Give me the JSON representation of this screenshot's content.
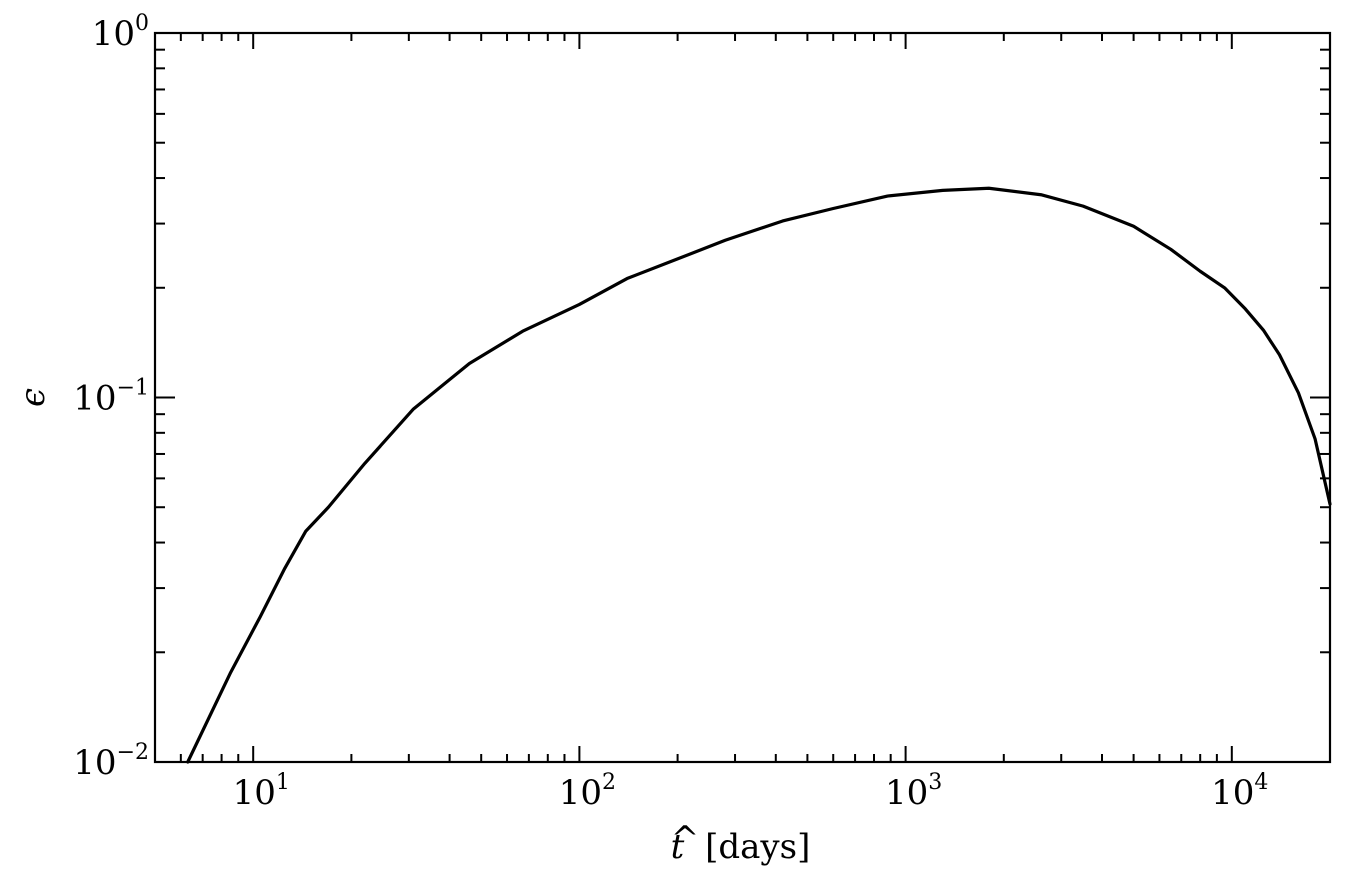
{
  "chart_data": {
    "type": "line",
    "x_scale": "log",
    "y_scale": "log",
    "xlim": [
      5,
      20000
    ],
    "ylim": [
      0.01,
      1
    ],
    "xlabel_symbol": "t",
    "xlabel_unit": "[days]",
    "ylabel": "ϵ",
    "grid": false,
    "x_ticks": [
      {
        "value": 10,
        "base": "10",
        "exp": "1"
      },
      {
        "value": 100,
        "base": "10",
        "exp": "2"
      },
      {
        "value": 1000,
        "base": "10",
        "exp": "3"
      },
      {
        "value": 10000,
        "base": "10",
        "exp": "4"
      }
    ],
    "y_ticks": [
      {
        "value": 0.01,
        "base": "10",
        "exp": "−2"
      },
      {
        "value": 0.1,
        "base": "10",
        "exp": "−1"
      },
      {
        "value": 1,
        "base": "10",
        "exp": "0"
      }
    ],
    "series": [
      {
        "color": "#000000",
        "x": [
          6.3,
          8.5,
          10.5,
          12.5,
          14.5,
          17,
          22,
          31,
          46,
          67,
          100,
          140,
          200,
          280,
          420,
          600,
          880,
          1300,
          1800,
          2600,
          3500,
          5000,
          6500,
          8000,
          9500,
          11000,
          12500,
          14000,
          16000,
          18000,
          20000
        ],
        "y": [
          0.01,
          0.0175,
          0.025,
          0.034,
          0.043,
          0.05,
          0.066,
          0.093,
          0.124,
          0.152,
          0.18,
          0.212,
          0.24,
          0.27,
          0.305,
          0.33,
          0.357,
          0.37,
          0.375,
          0.36,
          0.335,
          0.295,
          0.255,
          0.222,
          0.2,
          0.175,
          0.153,
          0.131,
          0.103,
          0.077,
          0.051
        ]
      }
    ]
  }
}
